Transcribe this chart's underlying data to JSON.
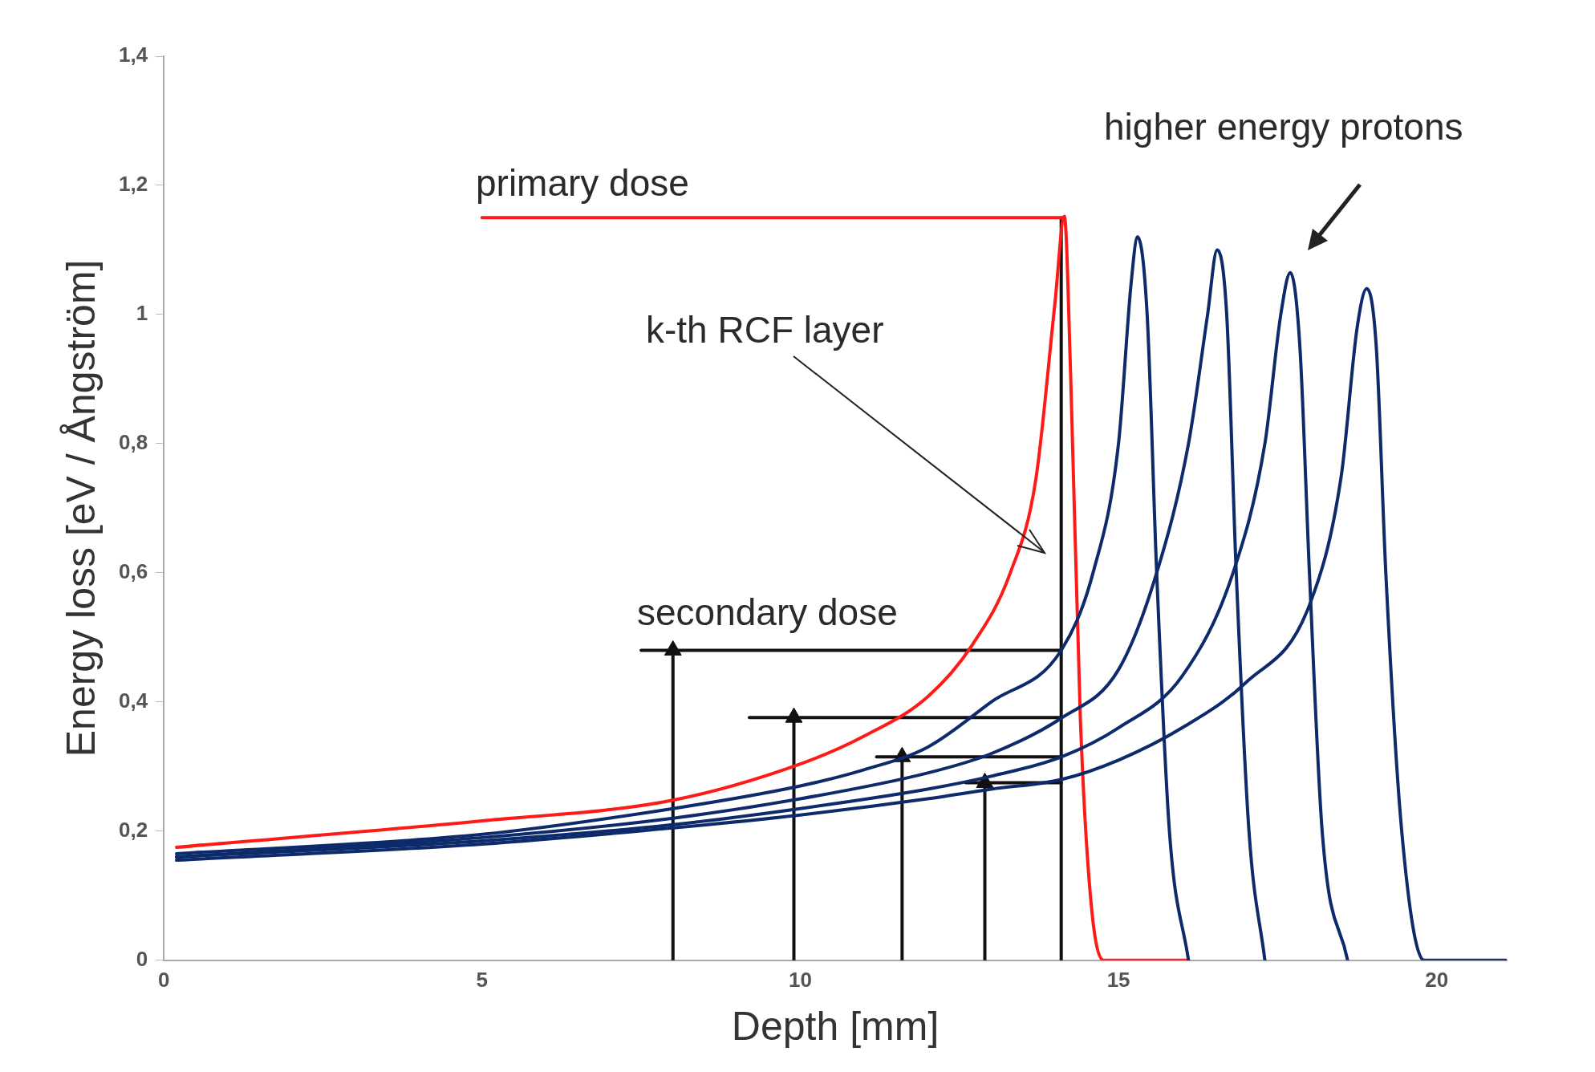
{
  "chart_data": {
    "type": "line",
    "xlabel": "Depth [mm]",
    "ylabel": "Energy loss [eV / Ångström]",
    "xlim": [
      0,
      21.1
    ],
    "ylim": [
      0,
      1.4
    ],
    "xticks": [
      0,
      5,
      10,
      15,
      20
    ],
    "yticks": [
      0,
      {
        "value": 0.2,
        "label": "0,2"
      },
      {
        "value": 0.4,
        "label": "0,4"
      },
      {
        "value": 0.6,
        "label": "0,6"
      },
      {
        "value": 0.8,
        "label": "0,8"
      },
      1,
      {
        "value": 1.2,
        "label": "1,2"
      },
      {
        "value": 1.4,
        "label": "1,4"
      }
    ],
    "grid": false,
    "legend": false,
    "line_style": "solid",
    "series": [
      {
        "color": "#0d2a6b",
        "x": [
          0.2,
          5,
          8,
          10,
          12,
          13,
          14.1,
          15,
          16,
          17,
          18,
          18.5,
          18.75,
          18.9,
          19.05,
          19.2,
          19.45,
          19.8,
          21.1
        ],
        "values": [
          0.155,
          0.18,
          0.205,
          0.225,
          0.25,
          0.265,
          0.28,
          0.31,
          0.36,
          0.43,
          0.55,
          0.75,
          0.98,
          1.04,
          0.95,
          0.6,
          0.2,
          0,
          0
        ]
      },
      {
        "color": "#0d2a6b",
        "x": [
          0.2,
          5,
          8,
          10,
          12,
          13,
          14.1,
          15,
          16,
          16.8,
          17.3,
          17.55,
          17.7,
          17.85,
          18,
          18.2,
          18.6
        ],
        "values": [
          0.16,
          0.185,
          0.21,
          0.235,
          0.265,
          0.285,
          0.315,
          0.36,
          0.44,
          0.6,
          0.8,
          1,
          1.065,
          0.95,
          0.6,
          0.2,
          0
        ]
      },
      {
        "color": "#0d2a6b",
        "x": [
          0.2,
          5,
          8,
          10,
          12,
          13,
          14.1,
          15,
          15.6,
          16.1,
          16.4,
          16.55,
          16.7,
          16.85,
          17.05,
          17.3
        ],
        "values": [
          0.16,
          0.19,
          0.22,
          0.25,
          0.29,
          0.32,
          0.375,
          0.45,
          0.6,
          0.8,
          1,
          1.1,
          1,
          0.6,
          0.2,
          0
        ]
      },
      {
        "color": "#0d2a6b",
        "x": [
          0.2,
          5,
          8,
          10,
          11,
          12,
          13,
          14.1,
          14.6,
          15,
          15.2,
          15.3,
          15.45,
          15.6,
          15.8,
          16.1
        ],
        "values": [
          0.165,
          0.195,
          0.235,
          0.27,
          0.295,
          0.33,
          0.4,
          0.48,
          0.6,
          0.8,
          1.05,
          1.12,
          1,
          0.6,
          0.2,
          0
        ]
      },
      {
        "color": "#ff1a1a",
        "x": [
          0.2,
          5,
          8,
          10,
          11,
          12,
          12.7,
          13.3,
          13.7,
          14,
          14.15,
          14.25,
          14.4,
          14.57,
          14.77,
          16.1
        ],
        "values": [
          0.175,
          0.216,
          0.248,
          0.304,
          0.347,
          0.408,
          0.488,
          0.6,
          0.744,
          1.016,
          1.152,
          0.9,
          0.376,
          0.088,
          0,
          0
        ]
      },
      {
        "color": "#ff1a1a",
        "x": [
          5,
          14.15
        ],
        "values": [
          1.15,
          1.15
        ]
      },
      {
        "color": "#111111",
        "x": [
          14.1,
          14.1
        ],
        "values": [
          0,
          1.15
        ]
      },
      {
        "color": "#111111",
        "x": [
          7.5,
          14.1
        ],
        "values": [
          0.48,
          0.48
        ]
      },
      {
        "color": "#111111",
        "x": [
          9.2,
          14.1
        ],
        "values": [
          0.376,
          0.376
        ]
      },
      {
        "color": "#111111",
        "x": [
          11.2,
          14.1
        ],
        "values": [
          0.315,
          0.315
        ]
      },
      {
        "color": "#111111",
        "x": [
          12.6,
          14.1
        ],
        "values": [
          0.275,
          0.275
        ]
      },
      {
        "color": "#111111",
        "marker": "triangle",
        "x": [
          8,
          8
        ],
        "values": [
          0,
          0.48
        ]
      },
      {
        "color": "#111111",
        "marker": "triangle",
        "x": [
          9.9,
          9.9
        ],
        "values": [
          0,
          0.376
        ]
      },
      {
        "color": "#111111",
        "marker": "triangle",
        "x": [
          11.6,
          11.6
        ],
        "values": [
          0,
          0.315
        ]
      },
      {
        "color": "#111111",
        "marker": "triangle",
        "x": [
          12.9,
          12.9
        ],
        "values": [
          0,
          0.275
        ]
      }
    ],
    "annotations": [
      "primary dose",
      "k-th RCF layer",
      "secondary dose",
      "higher energy protons"
    ]
  }
}
